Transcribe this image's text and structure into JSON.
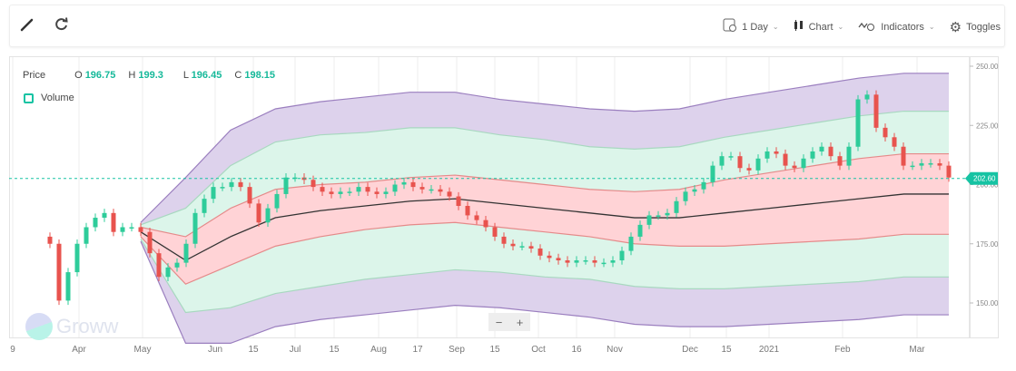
{
  "toolbar": {
    "left": [
      {
        "icon": "brush-icon"
      },
      {
        "icon": "refresh-icon"
      }
    ],
    "interval": "1 Day",
    "chart": "Chart",
    "indicators": "Indicators",
    "toggles": "Toggles"
  },
  "legend": {
    "price_label": "Price",
    "o_label": "O",
    "o": "196.75",
    "h_label": "H",
    "h": "199.3",
    "l_label": "L",
    "l": "196.45",
    "c_label": "C",
    "c": "198.15",
    "volume_label": "Volume"
  },
  "watermark": "Groww",
  "zoom": {
    "minus": "−",
    "plus": "+"
  },
  "colors": {
    "up": "#2ecc9a",
    "down": "#e8534e",
    "accent": "#16c3a3",
    "inner_band": "#ffd3d6",
    "mid_band": "#dcf5ea",
    "outer_band": "#ddd2ec",
    "middle_line": "#333333"
  },
  "chart_data": {
    "type": "candlestick",
    "yticks": [
      "250.00",
      "225.00",
      "200.00",
      "175.00",
      "150.00"
    ],
    "ylim": [
      150,
      250
    ],
    "xticks": [
      "9",
      "Apr",
      "May",
      "Jun",
      "15",
      "Jul",
      "15",
      "Aug",
      "17",
      "Sep",
      "15",
      "Oct",
      "16",
      "Nov",
      "Dec",
      "15",
      "2021",
      "Feb",
      "Mar"
    ],
    "last_price": "202.60",
    "closes": [
      175,
      151,
      163,
      175,
      182,
      186,
      188,
      180,
      182,
      182,
      180,
      171,
      161,
      165,
      167,
      175,
      188,
      194,
      199,
      199,
      201,
      199,
      192,
      184,
      190,
      196,
      203,
      203,
      202,
      199,
      197,
      196,
      197,
      197,
      199,
      197,
      196,
      197,
      200,
      201,
      199,
      198,
      198,
      197,
      195,
      191,
      187,
      185,
      182,
      178,
      175,
      174,
      174,
      173,
      170,
      169,
      168,
      167,
      168,
      168,
      167,
      167,
      168,
      172,
      178,
      183,
      187,
      187,
      188,
      193,
      197,
      198,
      201,
      208,
      212,
      212,
      207,
      206,
      211,
      214,
      213,
      208,
      207,
      211,
      214,
      216,
      212,
      208,
      216,
      236,
      238,
      224,
      220,
      216,
      208,
      208,
      209,
      209,
      208,
      203
    ],
    "bands": {
      "middle": [
        180,
        168,
        178,
        186,
        189,
        191,
        193,
        194,
        192,
        190,
        188,
        186,
        186,
        188,
        190,
        192,
        194,
        196,
        196
      ],
      "inner_half_width": [
        2,
        10,
        12,
        12,
        11,
        10,
        10,
        10,
        10,
        10,
        10,
        11,
        12,
        14,
        15,
        16,
        17,
        17,
        17
      ],
      "mid_half_width": [
        3,
        22,
        30,
        32,
        32,
        31,
        31,
        30,
        29,
        29,
        28,
        29,
        30,
        32,
        33,
        34,
        35,
        35,
        35
      ],
      "outer_half_width": [
        4,
        35,
        45,
        46,
        46,
        46,
        46,
        45,
        44,
        44,
        44,
        45,
        46,
        48,
        49,
        50,
        51,
        51,
        51
      ]
    }
  }
}
